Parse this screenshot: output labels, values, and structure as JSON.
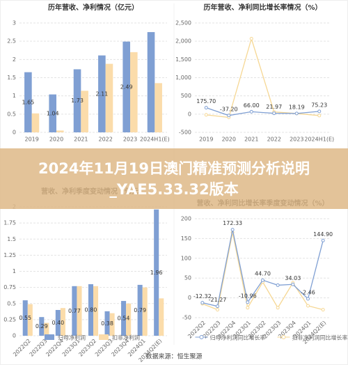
{
  "chart_data": [
    {
      "type": "bar",
      "title": "历年营收、净利情况（亿元）",
      "categories": [
        "2019",
        "2020",
        "2021",
        "2022",
        "2023",
        "2024H1(E)"
      ],
      "series": [
        {
          "color": "#7f9fd3",
          "values": [
            1.65,
            1.04,
            1.73,
            2.11,
            2.49,
            2.75
          ],
          "value_labels": [
            "1.65",
            "1.04",
            "1.73",
            "2.11",
            "2.49",
            null
          ]
        },
        {
          "color": "#fbdcaa",
          "values": [
            0.52,
            0.05,
            1.14,
            1.88,
            2.2,
            1.35
          ]
        }
      ],
      "ylim": [
        0,
        3
      ],
      "yticks": [
        0,
        0.5,
        1,
        1.5,
        2,
        2.5,
        3
      ],
      "grid": true
    },
    {
      "type": "line",
      "title": "历年营收、净利同比增长率情况（%）",
      "categories": [
        "2019",
        "2020",
        "2021",
        "2022",
        "2023",
        "2024H1(E)"
      ],
      "series": [
        {
          "color": "#7f9fd3",
          "values": [
            175.7,
            -37.2,
            66.0,
            21.97,
            18.19,
            75.23
          ],
          "value_labels": [
            "175.70",
            "-37.20",
            "66.00",
            "21.97",
            "18.19",
            "75.23"
          ]
        },
        {
          "color": "#f6d793",
          "values": [
            -20,
            -90,
            2070,
            60,
            17,
            -40
          ]
        }
      ],
      "ylim": [
        -500,
        2500
      ],
      "yticks": [
        -500,
        0,
        500,
        {
          "value": 1000,
          "label": "1,000"
        },
        {
          "value": 1500,
          "label": "1,500"
        },
        {
          "value": 2000,
          "label": "2,000"
        },
        {
          "value": 2500,
          "label": "2,500"
        }
      ],
      "grid": true
    },
    {
      "type": "bar",
      "title": "营收、净利季度变动情况（亿元）",
      "categories": [
        "2022Q2",
        "2022Q3",
        "2022Q4",
        "2023Q1",
        "2023Q2",
        "2023Q3",
        "2023Q4",
        "2024Q1",
        "2024Q2(E)"
      ],
      "series": [
        {
          "name": "归母净利润",
          "color": "#7f9fd3",
          "values": [
            0.55,
            0.29,
            0.4,
            0.77,
            0.8,
            0.38,
            0.54,
            0.79,
            1.96
          ],
          "value_labels": [
            "0.55",
            "0.29",
            "0.40",
            "0.77",
            "0.80",
            "0.38",
            "0.54",
            "0.79",
            "1.96"
          ]
        },
        {
          "name": "扣非净利润",
          "color": "#fbdcaa",
          "values": [
            0.49,
            0.2,
            0.43,
            0.77,
            0.77,
            0.35,
            0.5,
            0.75,
            0.58
          ]
        }
      ],
      "ylim": [
        0,
        2
      ],
      "yticks": [
        0,
        0.25,
        0.5,
        0.75,
        1,
        1.25,
        1.5,
        1.75,
        2
      ],
      "grid": true
    },
    {
      "type": "line",
      "title": "营收、净利同比增长率季度变动情况（%）",
      "categories": [
        "2022Q2",
        "2022Q3",
        "2022Q4",
        "2023Q1",
        "2023Q2",
        "2023Q3",
        "2023Q4",
        "2024Q1",
        "2024Q2(E)"
      ],
      "series": [
        {
          "name": "归母净利润同比增长率",
          "color": "#7f9fd3",
          "values": [
            -12.32,
            -21.27,
            172.33,
            -10.96,
            44.7,
            32,
            34.03,
            -2.46,
            144.9
          ],
          "value_labels": [
            "-12.32",
            "-21.27",
            "172.33",
            "-10.96",
            "44.70",
            null,
            "34.03",
            "-2.46",
            "144.90"
          ]
        },
        {
          "name": "扣非净利润同比增长率",
          "color": "#f6d793",
          "values": [
            -15,
            -30,
            165,
            -25,
            40,
            -25,
            38,
            -20,
            -30
          ]
        }
      ],
      "ylim": [
        -50,
        200
      ],
      "yticks": [
        -50,
        0,
        50,
        100,
        150,
        200
      ],
      "grid": true
    }
  ],
  "banner": {
    "title": "2024年11月19日澳门精准预测分析说明_YAE5.33.32版本"
  },
  "source": "数据来源：恒生聚源"
}
